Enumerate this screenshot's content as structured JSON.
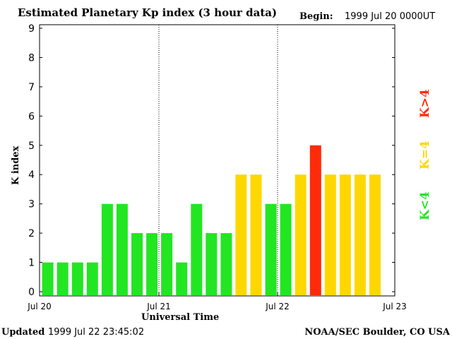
{
  "chart_data": {
    "type": "bar",
    "title": "Estimated Planetary Kp index (3 hour data)",
    "begin_label": "Begin:",
    "begin_value": "1999 Jul 20 0000UT",
    "xlabel": "Universal Time",
    "ylabel": "K index",
    "ylim": [
      0,
      9
    ],
    "yticks": [
      "0",
      "1",
      "2",
      "3",
      "4",
      "5",
      "6",
      "7",
      "8",
      "9"
    ],
    "xticks": [
      "Jul 20",
      "Jul 21",
      "Jul 22",
      "Jul 23"
    ],
    "bars_per_day": 8,
    "values": [
      1,
      1,
      1,
      1,
      3,
      3,
      2,
      2,
      2,
      1,
      3,
      2,
      2,
      4,
      4,
      3,
      3,
      4,
      5,
      4,
      4,
      4,
      4
    ],
    "colors": {
      "low": "#22e622",
      "medium": "#ffd700",
      "high": "#ff2a0a"
    },
    "legend": [
      {
        "label": "K<4",
        "color": "#22e622"
      },
      {
        "label": "K=4",
        "color": "#ffd700"
      },
      {
        "label": "K>4",
        "color": "#ff2a0a"
      }
    ]
  },
  "footer": {
    "updated_label": "Updated",
    "updated_value": "1999 Jul 22 23:45:02",
    "credit": "NOAA/SEC Boulder, CO USA"
  }
}
